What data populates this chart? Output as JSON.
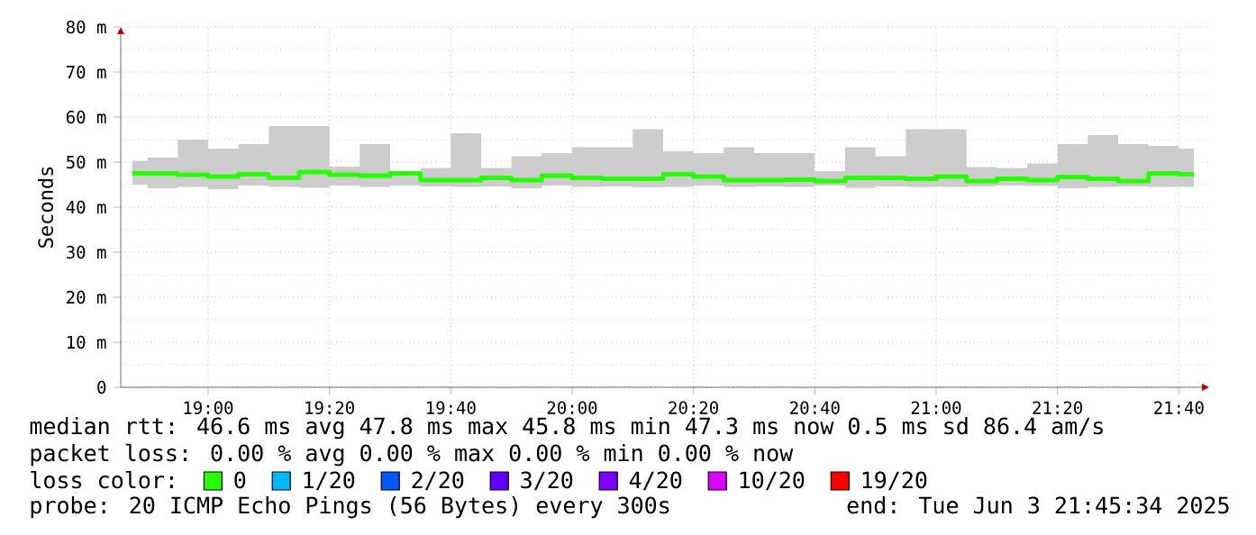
{
  "chart_data": {
    "type": "step",
    "ylabel": "Seconds",
    "legend_title": "loss color:",
    "legend": "bottom",
    "grid": true,
    "xlim": [
      18.76,
      21.75
    ],
    "ylim": [
      0,
      80
    ],
    "xticks": [
      {
        "value": 19.0,
        "label": "19:00"
      },
      {
        "value": 19.3333,
        "label": "19:20"
      },
      {
        "value": 19.6667,
        "label": "19:40"
      },
      {
        "value": 20.0,
        "label": "20:00"
      },
      {
        "value": 20.3333,
        "label": "20:20"
      },
      {
        "value": 20.6667,
        "label": "20:40"
      },
      {
        "value": 21.0,
        "label": "21:00"
      },
      {
        "value": 21.3333,
        "label": "21:20"
      },
      {
        "value": 21.6667,
        "label": "21:40"
      }
    ],
    "yticks": [
      0,
      {
        "value": 10,
        "label": "10 m"
      },
      {
        "value": 20,
        "label": "20 m"
      },
      {
        "value": 30,
        "label": "30 m"
      },
      {
        "value": 40,
        "label": "40 m"
      },
      {
        "value": 50,
        "label": "50 m"
      },
      {
        "value": 60,
        "label": "60 m"
      },
      {
        "value": 70,
        "label": "70 m"
      },
      {
        "value": 80,
        "label": "80 m"
      }
    ],
    "x": [
      18.7917,
      18.875,
      18.9583,
      19.0417,
      19.125,
      19.2083,
      19.2917,
      19.375,
      19.4583,
      19.5417,
      19.625,
      19.7083,
      19.7917,
      19.875,
      19.9583,
      20.0417,
      20.125,
      20.2083,
      20.2917,
      20.375,
      20.4583,
      20.5417,
      20.625,
      20.7083,
      20.7917,
      20.875,
      20.9583,
      21.0417,
      21.125,
      21.2083,
      21.2917,
      21.375,
      21.4583,
      21.5417,
      21.625,
      21.7083
    ],
    "series": [
      {
        "name": "0",
        "color": "#26ff00",
        "values": [
          47.5,
          47.5,
          47.2,
          46.8,
          47.3,
          46.5,
          47.8,
          47.2,
          47.0,
          47.5,
          46.0,
          46.0,
          46.5,
          46.0,
          47.0,
          46.5,
          46.3,
          46.3,
          47.3,
          46.8,
          46.0,
          46.0,
          46.1,
          45.8,
          46.5,
          46.5,
          46.3,
          46.8,
          45.8,
          46.3,
          46.0,
          46.7,
          46.3,
          45.8,
          47.5,
          47.3
        ],
        "lower": [
          45.0,
          44.2,
          44.5,
          44.0,
          44.8,
          44.5,
          44.3,
          44.8,
          44.5,
          44.8,
          44.6,
          44.5,
          44.6,
          44.2,
          44.8,
          44.5,
          44.6,
          44.4,
          44.5,
          44.8,
          44.5,
          44.6,
          44.5,
          44.8,
          44.3,
          44.6,
          44.5,
          44.5,
          44.6,
          44.8,
          44.7,
          44.2,
          44.5,
          44.6,
          44.5,
          44.5
        ],
        "upper": [
          50.3,
          51.0,
          55.0,
          53.0,
          54.0,
          58.0,
          58.0,
          49.0,
          54.0,
          48.0,
          48.7,
          56.4,
          48.7,
          51.3,
          52.0,
          53.3,
          53.3,
          57.3,
          52.4,
          52.0,
          53.3,
          52.0,
          52.0,
          48.0,
          53.3,
          51.3,
          57.3,
          57.3,
          48.9,
          48.7,
          49.7,
          54.0,
          56.0,
          54.0,
          53.6,
          53.0
        ]
      },
      {
        "name": "1/20",
        "color": "#00b8ff",
        "values": [
          null,
          null,
          null,
          null,
          null,
          null,
          null,
          null,
          null,
          null,
          null,
          null,
          null,
          null,
          null,
          null,
          null,
          null,
          null,
          null,
          null,
          null,
          null,
          null,
          null,
          null,
          null,
          null,
          null,
          null,
          null,
          null,
          null,
          null,
          null,
          null
        ]
      },
      {
        "name": "2/20",
        "color": "#0059ff",
        "values": [
          null,
          null,
          null,
          null,
          null,
          null,
          null,
          null,
          null,
          null,
          null,
          null,
          null,
          null,
          null,
          null,
          null,
          null,
          null,
          null,
          null,
          null,
          null,
          null,
          null,
          null,
          null,
          null,
          null,
          null,
          null,
          null,
          null,
          null,
          null,
          null
        ]
      },
      {
        "name": "3/20",
        "color": "#5e00ff",
        "values": [
          null,
          null,
          null,
          null,
          null,
          null,
          null,
          null,
          null,
          null,
          null,
          null,
          null,
          null,
          null,
          null,
          null,
          null,
          null,
          null,
          null,
          null,
          null,
          null,
          null,
          null,
          null,
          null,
          null,
          null,
          null,
          null,
          null,
          null,
          null,
          null
        ]
      },
      {
        "name": "4/20",
        "color": "#7e00ff",
        "values": [
          null,
          null,
          null,
          null,
          null,
          null,
          null,
          null,
          null,
          null,
          null,
          null,
          null,
          null,
          null,
          null,
          null,
          null,
          null,
          null,
          null,
          null,
          null,
          null,
          null,
          null,
          null,
          null,
          null,
          null,
          null,
          null,
          null,
          null,
          null,
          null
        ]
      },
      {
        "name": "10/20",
        "color": "#dd00ff",
        "values": [
          null,
          null,
          null,
          null,
          null,
          null,
          null,
          null,
          null,
          null,
          null,
          null,
          null,
          null,
          null,
          null,
          null,
          null,
          null,
          null,
          null,
          null,
          null,
          null,
          null,
          null,
          null,
          null,
          null,
          null,
          null,
          null,
          null,
          null,
          null,
          null
        ]
      },
      {
        "name": "19/20",
        "color": "#ff0000",
        "values": [
          null,
          null,
          null,
          null,
          null,
          null,
          null,
          null,
          null,
          null,
          null,
          null,
          null,
          null,
          null,
          null,
          null,
          null,
          null,
          null,
          null,
          null,
          null,
          null,
          null,
          null,
          null,
          null,
          null,
          null,
          null,
          null,
          null,
          null,
          null,
          null
        ]
      }
    ],
    "annotations": [
      "median rtt:  46.6 ms avg  47.8 ms max  45.8 ms min  47.3 ms now  0.5 ms sd  86.4   am/s",
      "packet loss: 0.00 % avg  0.00 % max  0.00 % min  0.00 % now",
      "probe:       20 ICMP Echo Pings (56 Bytes) every 300s",
      "end: Tue Jun  3 21:45:34 2025"
    ]
  }
}
